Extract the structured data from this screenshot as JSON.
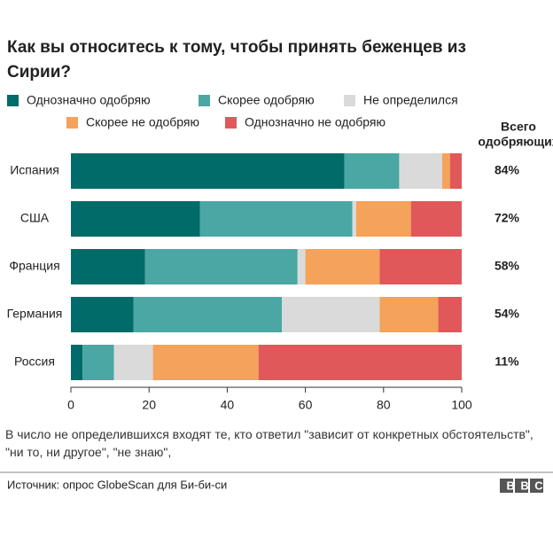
{
  "chart_data": {
    "type": "stacked-bar-horizontal",
    "title": "Как вы относитесь к тому, чтобы принять беженцев из Сирии?",
    "categories": [
      "Испания",
      "США",
      "Франция",
      "Германия",
      "Россия"
    ],
    "series": [
      {
        "name": "Однозначно одобряю",
        "color": "#006b68",
        "values": [
          70,
          33,
          19,
          16,
          3
        ]
      },
      {
        "name": "Скорее одобряю",
        "color": "#4aa7a3",
        "values": [
          14,
          39,
          39,
          38,
          8
        ]
      },
      {
        "name": "Не определился",
        "color": "#dadada",
        "values": [
          11,
          1,
          2,
          25,
          10
        ]
      },
      {
        "name": "Скорее не одобряю",
        "color": "#f5a25a",
        "values": [
          2,
          14,
          19,
          15,
          27
        ]
      },
      {
        "name": "Однозначно не одобряю",
        "color": "#e0585a",
        "values": [
          3,
          13,
          21,
          6,
          52
        ]
      }
    ],
    "xlim": [
      0,
      100
    ],
    "xticks": [
      0,
      20,
      40,
      60,
      80,
      100
    ],
    "totals": {
      "title_lines": [
        "Всего",
        "одобряющих"
      ],
      "values": [
        84,
        72,
        58,
        54,
        11
      ],
      "value_labels": [
        "84%",
        "72%",
        "58%",
        "54%",
        "11%"
      ]
    },
    "note": "В число не определившихся входят те, кто ответил \"зависит от конкретных обстоятельств\", \"ни то, ни другое\", \"не знаю\",",
    "source": "Источник: опрос GlobeScan для Би-би-си",
    "logo": "BBC"
  }
}
